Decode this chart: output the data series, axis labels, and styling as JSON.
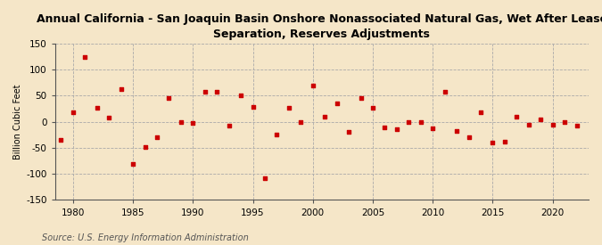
{
  "title": "Annual California - San Joaquin Basin Onshore Nonassociated Natural Gas, Wet After Lease\nSeparation, Reserves Adjustments",
  "ylabel": "Billion Cubic Feet",
  "source": "Source: U.S. Energy Information Administration",
  "background_color": "#f5e6c8",
  "plot_background_color": "#f5e6c8",
  "marker_color": "#cc0000",
  "years": [
    1979,
    1980,
    1981,
    1982,
    1983,
    1984,
    1985,
    1986,
    1987,
    1988,
    1989,
    1990,
    1991,
    1992,
    1993,
    1994,
    1995,
    1996,
    1997,
    1998,
    1999,
    2000,
    2001,
    2002,
    2003,
    2004,
    2005,
    2006,
    2007,
    2008,
    2009,
    2010,
    2011,
    2012,
    2013,
    2014,
    2015,
    2016,
    2017,
    2018,
    2019,
    2020,
    2021,
    2022
  ],
  "values": [
    -35,
    18,
    125,
    27,
    8,
    62,
    -80,
    -48,
    -30,
    45,
    0,
    -2,
    57,
    57,
    -8,
    50,
    28,
    -109,
    -25,
    27,
    0,
    70,
    10,
    35,
    -20,
    45,
    27,
    -10,
    -15,
    0,
    0,
    -12,
    57,
    -18,
    -30,
    18,
    -40,
    -38,
    10,
    -5,
    5,
    -5,
    0,
    -8
  ],
  "xlim": [
    1978.5,
    2023
  ],
  "ylim": [
    -150,
    150
  ],
  "yticks": [
    -150,
    -100,
    -50,
    0,
    50,
    100,
    150
  ],
  "xticks": [
    1980,
    1985,
    1990,
    1995,
    2000,
    2005,
    2010,
    2015,
    2020
  ],
  "title_fontsize": 9,
  "ylabel_fontsize": 7,
  "tick_fontsize": 7.5,
  "source_fontsize": 7,
  "marker_size": 10
}
